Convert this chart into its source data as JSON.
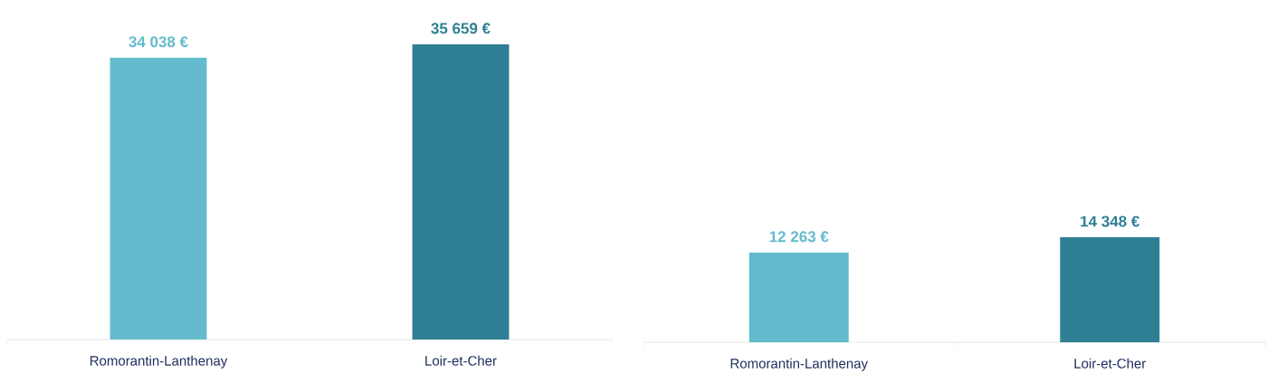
{
  "chart_data": [
    {
      "type": "bar",
      "categories": [
        "Romorantin-Lanthenay",
        "Loir-et-Cher"
      ],
      "values": [
        34038,
        35659
      ],
      "colors": [
        "#63bbcd",
        "#2e7f93"
      ],
      "value_labels": [
        "34 038 €",
        "35 659 €"
      ]
    },
    {
      "type": "bar",
      "categories": [
        "Romorantin-Lanthenay",
        "Loir-et-Cher"
      ],
      "values": [
        12263,
        14348
      ],
      "colors": [
        "#63bbcd",
        "#2e7f93"
      ],
      "value_labels": [
        "12 263 €",
        "14 348 €"
      ]
    }
  ]
}
